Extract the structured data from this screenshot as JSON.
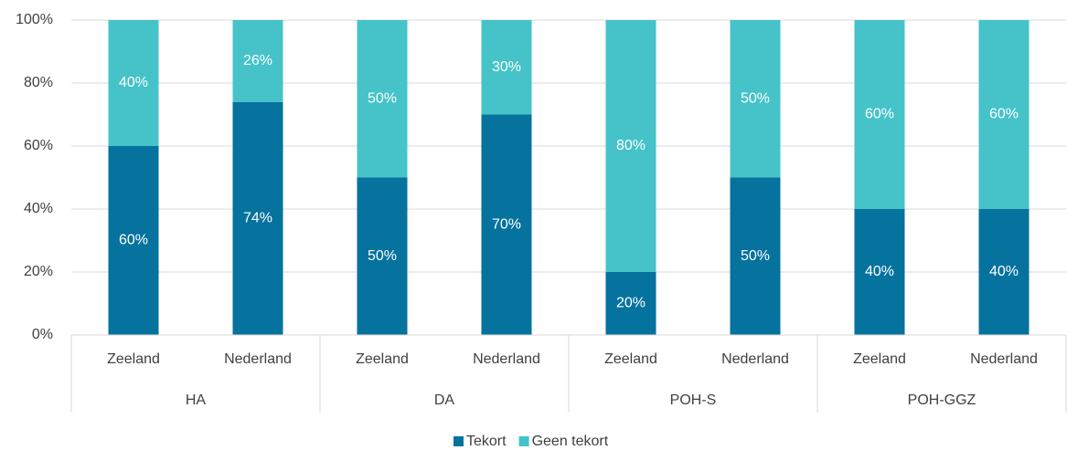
{
  "chart_data": {
    "type": "stacked_bar",
    "categories": [
      "Zeeland",
      "Nederland",
      "Zeeland",
      "Nederland",
      "Zeeland",
      "Nederland",
      "Zeeland",
      "Nederland"
    ],
    "groups": [
      "HA",
      "DA",
      "POH-S",
      "POH-GGZ"
    ],
    "series": [
      {
        "name": "Tekort",
        "color": "#06729e",
        "values": [
          60,
          74,
          50,
          70,
          20,
          50,
          40,
          40
        ],
        "value_labels": [
          "60%",
          "74%",
          "50%",
          "70%",
          "20%",
          "50%",
          "40%",
          "40%"
        ]
      },
      {
        "name": "Geen tekort",
        "color": "#45c3c8",
        "values": [
          40,
          26,
          50,
          30,
          80,
          50,
          60,
          60
        ],
        "value_labels": [
          "40%",
          "26%",
          "50%",
          "30%",
          "80%",
          "50%",
          "60%",
          "60%"
        ]
      }
    ],
    "ylim": [
      0,
      100
    ],
    "yticks": [
      {
        "value": 0,
        "label": "0%"
      },
      {
        "value": 20,
        "label": "20%"
      },
      {
        "value": 40,
        "label": "40%"
      },
      {
        "value": 60,
        "label": "60%"
      },
      {
        "value": 80,
        "label": "80%"
      },
      {
        "value": 100,
        "label": "100%"
      }
    ],
    "grid": true,
    "legend": "bottom"
  }
}
